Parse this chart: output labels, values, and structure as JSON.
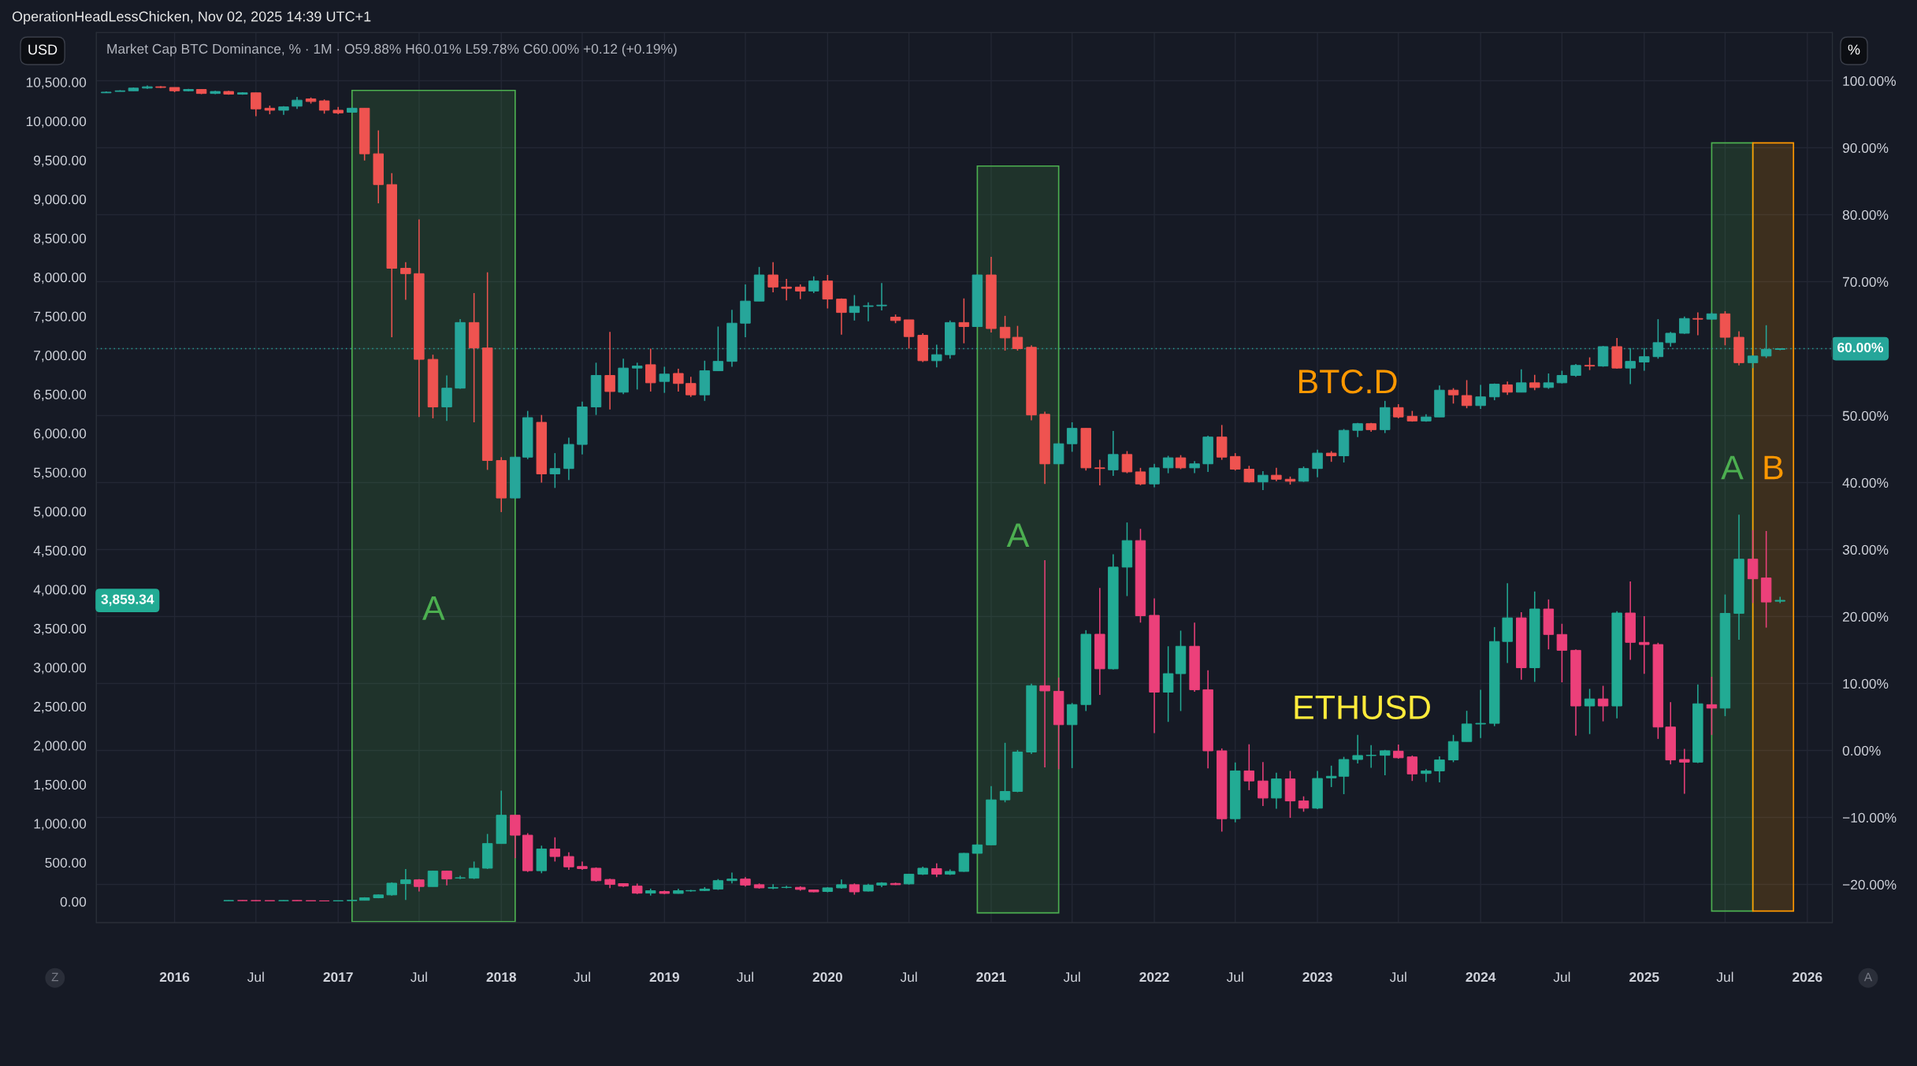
{
  "chart_data": {
    "type": "candlestick",
    "title": "OperationHeadLessChicken, Nov 02, 2025 14:39 UTC+1",
    "subtitle": "Market Cap BTC Dominance, % · 1M · O59.88% H60.01% L59.78% C60.00% +0.12 (+0.19%)",
    "ylabel": "USD",
    "y2label": "%",
    "annotations": [
      "Z",
      "A",
      "3,859.34"
    ],
    "series": [
      {
        "name": "BTC.D",
        "axis": "y2",
        "x": [
          "2015-08",
          "2015-09",
          "2015-10",
          "2015-11",
          "2015-12",
          "2016-01",
          "2016-02",
          "2016-03",
          "2016-04",
          "2016-05",
          "2016-06",
          "2016-07",
          "2016-08",
          "2016-09",
          "2016-10",
          "2016-11",
          "2016-12",
          "2017-01",
          "2017-02",
          "2017-03",
          "2017-04",
          "2017-05",
          "2017-06",
          "2017-07",
          "2017-08",
          "2017-09",
          "2017-10",
          "2017-11",
          "2017-12",
          "2018-01",
          "2018-02",
          "2018-03",
          "2018-04",
          "2018-05",
          "2018-06",
          "2018-07",
          "2018-08",
          "2018-09",
          "2018-10",
          "2018-11",
          "2018-12",
          "2019-01",
          "2019-02",
          "2019-03",
          "2019-04",
          "2019-05",
          "2019-06",
          "2019-07",
          "2019-08",
          "2019-09",
          "2019-10",
          "2019-11",
          "2019-12",
          "2020-01",
          "2020-02",
          "2020-03",
          "2020-04",
          "2020-05",
          "2020-06",
          "2020-07",
          "2020-08",
          "2020-09",
          "2020-10",
          "2020-11",
          "2020-12",
          "2021-01",
          "2021-02",
          "2021-03",
          "2021-04",
          "2021-05",
          "2021-06",
          "2021-07",
          "2021-08",
          "2021-09",
          "2021-10",
          "2021-11",
          "2021-12",
          "2022-01",
          "2022-02",
          "2022-03",
          "2022-04",
          "2022-05",
          "2022-06",
          "2022-07",
          "2022-08",
          "2022-09",
          "2022-10",
          "2022-11",
          "2022-12",
          "2023-01",
          "2023-02",
          "2023-03",
          "2023-04",
          "2023-05",
          "2023-06",
          "2023-07",
          "2023-08",
          "2023-09",
          "2023-10",
          "2023-11",
          "2023-12",
          "2024-01",
          "2024-02",
          "2024-03",
          "2024-04",
          "2024-05",
          "2024-06",
          "2024-07",
          "2024-08",
          "2024-09",
          "2024-10",
          "2024-11",
          "2024-12",
          "2025-01",
          "2025-02",
          "2025-03",
          "2025-04",
          "2025-05",
          "2025-06",
          "2025-07",
          "2025-08",
          "2025-09",
          "2025-10",
          "2025-11"
        ],
        "ohlc": [
          [
            98.2,
            98.4,
            98.2,
            98.3
          ],
          [
            98.4,
            98.6,
            98.4,
            98.5
          ],
          [
            98.5,
            99.0,
            98.5,
            98.9
          ],
          [
            98.9,
            99.3,
            98.8,
            99.1
          ],
          [
            99.1,
            99.2,
            98.9,
            99.0
          ],
          [
            99.0,
            99.0,
            98.3,
            98.5
          ],
          [
            98.5,
            98.8,
            98.4,
            98.7
          ],
          [
            98.7,
            98.7,
            98.0,
            98.1
          ],
          [
            98.1,
            98.5,
            98.0,
            98.4
          ],
          [
            98.4,
            98.5,
            97.9,
            98.0
          ],
          [
            98.0,
            98.3,
            97.9,
            98.2
          ],
          [
            98.2,
            98.2,
            94.7,
            95.8
          ],
          [
            95.9,
            96.3,
            95.0,
            95.6
          ],
          [
            95.6,
            96.2,
            94.9,
            96.1
          ],
          [
            96.2,
            97.6,
            95.8,
            97.1
          ],
          [
            97.3,
            97.5,
            96.6,
            96.9
          ],
          [
            97.0,
            97.2,
            95.1,
            95.6
          ],
          [
            95.6,
            96.1,
            95.0,
            95.2
          ],
          [
            95.3,
            96.0,
            95.2,
            95.9
          ],
          [
            95.9,
            95.9,
            88.1,
            89.1
          ],
          [
            89.1,
            92.6,
            81.7,
            84.5
          ],
          [
            84.5,
            86.2,
            61.7,
            72.0
          ],
          [
            72.0,
            72.9,
            67.3,
            71.2
          ],
          [
            71.2,
            79.3,
            49.8,
            58.4
          ],
          [
            58.4,
            59.1,
            49.6,
            51.3
          ],
          [
            51.3,
            56.0,
            49.2,
            54.1
          ],
          [
            54.1,
            64.4,
            54.0,
            63.9
          ],
          [
            63.9,
            68.3,
            49.0,
            60.1
          ],
          [
            60.1,
            71.4,
            41.9,
            43.3
          ],
          [
            43.3,
            43.8,
            35.6,
            37.7
          ],
          [
            37.7,
            43.9,
            37.6,
            43.8
          ],
          [
            43.8,
            50.7,
            43.5,
            49.7
          ],
          [
            49.0,
            50.1,
            40.0,
            41.3
          ],
          [
            41.3,
            44.4,
            39.2,
            42.1
          ],
          [
            42.1,
            46.7,
            40.4,
            45.7
          ],
          [
            45.7,
            52.1,
            44.2,
            51.3
          ],
          [
            51.3,
            57.9,
            50.1,
            56.0
          ],
          [
            56.0,
            62.5,
            50.9,
            53.6
          ],
          [
            53.5,
            58.5,
            53.2,
            57.1
          ],
          [
            57.1,
            57.9,
            53.9,
            57.4
          ],
          [
            57.6,
            60.0,
            53.6,
            54.9
          ],
          [
            55.1,
            57.3,
            53.4,
            56.2
          ],
          [
            56.3,
            57.0,
            53.6,
            54.8
          ],
          [
            54.8,
            55.8,
            52.8,
            53.1
          ],
          [
            53.1,
            58.2,
            52.2,
            56.7
          ],
          [
            56.7,
            63.3,
            56.7,
            58.1
          ],
          [
            58.1,
            65.8,
            57.3,
            63.8
          ],
          [
            63.8,
            69.6,
            61.7,
            67.1
          ],
          [
            67.1,
            72.2,
            67.1,
            71.0
          ],
          [
            71.0,
            72.9,
            68.4,
            69.2
          ],
          [
            69.2,
            70.4,
            67.2,
            69.0
          ],
          [
            69.2,
            69.6,
            67.4,
            68.6
          ],
          [
            68.6,
            70.8,
            68.3,
            70.1
          ],
          [
            70.1,
            71.0,
            66.0,
            67.4
          ],
          [
            67.4,
            67.5,
            62.1,
            65.4
          ],
          [
            65.4,
            68.0,
            64.2,
            66.3
          ],
          [
            66.3,
            66.9,
            64.1,
            66.4
          ],
          [
            66.4,
            69.8,
            65.7,
            66.5
          ],
          [
            64.7,
            65.1,
            63.8,
            64.2
          ],
          [
            64.3,
            64.3,
            60.0,
            61.8
          ],
          [
            62.0,
            62.3,
            58.0,
            58.2
          ],
          [
            58.2,
            60.6,
            57.2,
            59.1
          ],
          [
            59.1,
            64.2,
            58.5,
            63.9
          ],
          [
            63.9,
            67.5,
            60.8,
            63.3
          ],
          [
            63.3,
            71.1,
            63.3,
            71.0
          ],
          [
            71.0,
            73.7,
            62.4,
            63.0
          ],
          [
            63.2,
            64.9,
            59.7,
            61.6
          ],
          [
            61.7,
            63.4,
            59.7,
            60.0
          ],
          [
            60.2,
            60.5,
            49.3,
            50.1
          ],
          [
            50.2,
            50.6,
            39.8,
            42.8
          ],
          [
            42.8,
            45.9,
            42.8,
            45.8
          ],
          [
            45.8,
            49.0,
            44.6,
            48.1
          ],
          [
            48.1,
            48.1,
            41.8,
            42.2
          ],
          [
            42.2,
            43.4,
            39.6,
            42.1
          ],
          [
            41.9,
            47.7,
            41.0,
            44.2
          ],
          [
            44.2,
            44.7,
            41.4,
            41.6
          ],
          [
            41.6,
            42.2,
            39.6,
            39.8
          ],
          [
            39.8,
            42.8,
            39.3,
            42.2
          ],
          [
            42.2,
            44.0,
            41.4,
            43.7
          ],
          [
            43.7,
            44.1,
            42.0,
            42.2
          ],
          [
            42.2,
            43.2,
            41.4,
            42.8
          ],
          [
            42.8,
            47.0,
            41.6,
            46.8
          ],
          [
            46.8,
            48.6,
            43.4,
            43.8
          ],
          [
            43.9,
            44.4,
            41.8,
            42.0
          ],
          [
            42.0,
            42.5,
            40.0,
            40.1
          ],
          [
            40.1,
            41.7,
            38.9,
            41.1
          ],
          [
            41.1,
            42.2,
            40.2,
            40.5
          ],
          [
            40.5,
            40.9,
            39.7,
            40.2
          ],
          [
            40.2,
            42.4,
            40.1,
            42.1
          ],
          [
            42.1,
            44.9,
            40.8,
            44.4
          ],
          [
            44.4,
            44.7,
            43.1,
            44.0
          ],
          [
            44.0,
            48.0,
            43.0,
            47.8
          ],
          [
            47.8,
            48.9,
            46.8,
            48.8
          ],
          [
            48.8,
            48.9,
            47.6,
            47.9
          ],
          [
            47.9,
            52.2,
            47.4,
            51.2
          ],
          [
            51.2,
            51.7,
            49.6,
            49.8
          ],
          [
            49.9,
            50.7,
            49.1,
            49.2
          ],
          [
            49.2,
            50.2,
            49.1,
            49.8
          ],
          [
            49.8,
            54.5,
            49.8,
            53.8
          ],
          [
            53.8,
            54.1,
            51.8,
            53.1
          ],
          [
            53.0,
            55.3,
            51.1,
            51.5
          ],
          [
            51.5,
            54.6,
            51.0,
            52.8
          ],
          [
            52.8,
            54.8,
            52.3,
            54.7
          ],
          [
            54.6,
            55.1,
            53.1,
            53.5
          ],
          [
            53.5,
            56.9,
            53.5,
            54.9
          ],
          [
            54.9,
            56.1,
            53.8,
            54.2
          ],
          [
            54.2,
            56.3,
            54.0,
            54.9
          ],
          [
            54.9,
            56.7,
            54.8,
            56.0
          ],
          [
            56.0,
            57.7,
            55.8,
            57.5
          ],
          [
            57.5,
            58.7,
            56.8,
            57.4
          ],
          [
            57.4,
            60.4,
            57.3,
            60.3
          ],
          [
            60.3,
            61.6,
            57.0,
            57.1
          ],
          [
            57.1,
            60.1,
            54.7,
            58.1
          ],
          [
            58.0,
            60.1,
            56.7,
            58.8
          ],
          [
            58.8,
            64.4,
            58.5,
            60.9
          ],
          [
            60.9,
            62.5,
            60.3,
            62.3
          ],
          [
            62.3,
            64.8,
            62.2,
            64.5
          ],
          [
            64.5,
            65.4,
            62.0,
            64.4
          ],
          [
            64.4,
            65.4,
            64.3,
            65.2
          ],
          [
            65.2,
            65.6,
            60.5,
            61.7
          ],
          [
            61.7,
            62.6,
            57.5,
            57.9
          ],
          [
            57.9,
            59.0,
            57.1,
            58.9
          ],
          [
            58.9,
            63.5,
            58.6,
            59.9
          ],
          [
            59.88,
            60.01,
            59.78,
            60.0
          ]
        ],
        "colors": [
          "#26a69a",
          "#26a69a",
          "#26a69a",
          "#26a69a",
          "#ef5350",
          "#ef5350",
          "#26a69a",
          "#ef5350",
          "#26a69a",
          "#ef5350",
          "#26a69a",
          "#ef5350",
          "#ef5350",
          "#26a69a",
          "#26a69a",
          "#ef5350",
          "#ef5350",
          "#ef5350",
          "#26a69a",
          "#ef5350",
          "#ef5350",
          "#ef5350",
          "#ef5350",
          "#ef5350",
          "#ef5350",
          "#26a69a",
          "#26a69a",
          "#ef5350",
          "#ef5350",
          "#ef5350",
          "#26a69a",
          "#26a69a",
          "#ef5350",
          "#26a69a",
          "#26a69a",
          "#26a69a",
          "#26a69a",
          "#ef5350",
          "#26a69a",
          "#26a69a",
          "#ef5350",
          "#26a69a",
          "#ef5350",
          "#ef5350",
          "#26a69a",
          "#26a69a",
          "#26a69a",
          "#26a69a",
          "#26a69a",
          "#ef5350",
          "#ef5350",
          "#ef5350",
          "#26a69a",
          "#ef5350",
          "#ef5350",
          "#26a69a",
          "#26a69a",
          "#26a69a",
          "#ef5350",
          "#ef5350",
          "#ef5350",
          "#26a69a",
          "#26a69a",
          "#ef5350",
          "#26a69a",
          "#ef5350",
          "#ef5350",
          "#ef5350",
          "#ef5350",
          "#ef5350",
          "#26a69a",
          "#26a69a",
          "#ef5350",
          "#ef5350",
          "#26a69a",
          "#ef5350",
          "#ef5350",
          "#26a69a",
          "#26a69a",
          "#ef5350",
          "#26a69a",
          "#26a69a",
          "#ef5350",
          "#ef5350",
          "#ef5350",
          "#26a69a",
          "#ef5350",
          "#ef5350",
          "#26a69a",
          "#26a69a",
          "#ef5350",
          "#26a69a",
          "#26a69a",
          "#ef5350",
          "#26a69a",
          "#ef5350",
          "#ef5350",
          "#26a69a",
          "#26a69a",
          "#ef5350",
          "#ef5350",
          "#26a69a",
          "#26a69a",
          "#ef5350",
          "#26a69a",
          "#ef5350",
          "#26a69a",
          "#26a69a",
          "#26a69a",
          "#ef5350",
          "#26a69a",
          "#ef5350",
          "#26a69a",
          "#26a69a",
          "#26a69a",
          "#26a69a",
          "#26a69a",
          "#ef5350",
          "#26a69a",
          "#ef5350",
          "#ef5350",
          "#26a69a",
          "#26a69a",
          "#26a69a"
        ]
      },
      {
        "name": "ETHUSD",
        "x": [
          "2016-05",
          "2016-06",
          "2016-07",
          "2016-08",
          "2016-09",
          "2016-10",
          "2016-11",
          "2016-12",
          "2017-01",
          "2017-02",
          "2017-03",
          "2017-04",
          "2017-05",
          "2017-06",
          "2017-07",
          "2017-08",
          "2017-09",
          "2017-10",
          "2017-11",
          "2017-12",
          "2018-01",
          "2018-02",
          "2018-03",
          "2018-04",
          "2018-05",
          "2018-06",
          "2018-07",
          "2018-08",
          "2018-09",
          "2018-10",
          "2018-11",
          "2018-12",
          "2019-01",
          "2019-02",
          "2019-03",
          "2019-04",
          "2019-05",
          "2019-06",
          "2019-07",
          "2019-08",
          "2019-09",
          "2019-10",
          "2019-11",
          "2019-12",
          "2020-01",
          "2020-02",
          "2020-03",
          "2020-04",
          "2020-05",
          "2020-06",
          "2020-07",
          "2020-08",
          "2020-09",
          "2020-10",
          "2020-11",
          "2020-12",
          "2021-01",
          "2021-02",
          "2021-03",
          "2021-04",
          "2021-05",
          "2021-06",
          "2021-07",
          "2021-08",
          "2021-09",
          "2021-10",
          "2021-11",
          "2021-12",
          "2022-01",
          "2022-02",
          "2022-03",
          "2022-04",
          "2022-05",
          "2022-06",
          "2022-07",
          "2022-08",
          "2022-09",
          "2022-10",
          "2022-11",
          "2022-12",
          "2023-01",
          "2023-02",
          "2023-03",
          "2023-04",
          "2023-05",
          "2023-06",
          "2023-07",
          "2023-08",
          "2023-09",
          "2023-10",
          "2023-11",
          "2023-12",
          "2024-01",
          "2024-02",
          "2024-03",
          "2024-04",
          "2024-05",
          "2024-06",
          "2024-07",
          "2024-08",
          "2024-09",
          "2024-10",
          "2024-11",
          "2024-12",
          "2025-01",
          "2025-02",
          "2025-03",
          "2025-04",
          "2025-05",
          "2025-06",
          "2025-07",
          "2025-08",
          "2025-09",
          "2025-10",
          "2025-11"
        ],
        "ohlc": [
          [
            10,
            14,
            9,
            13
          ],
          [
            13,
            14,
            11,
            12
          ],
          [
            12,
            15,
            10,
            11
          ],
          [
            11,
            12,
            9,
            10
          ],
          [
            10,
            14,
            10,
            13
          ],
          [
            13,
            14,
            11,
            11
          ],
          [
            11,
            11,
            8,
            9
          ],
          [
            9,
            9,
            7,
            8
          ],
          [
            8,
            11,
            8,
            11
          ],
          [
            11,
            17,
            11,
            16
          ],
          [
            16,
            55,
            15,
            48
          ],
          [
            48,
            90,
            42,
            85
          ],
          [
            85,
            246,
            75,
            235
          ],
          [
            230,
            417,
            20,
            278
          ],
          [
            278,
            289,
            128,
            192
          ],
          [
            192,
            395,
            192,
            390
          ],
          [
            390,
            395,
            208,
            289
          ],
          [
            300,
            331,
            289,
            305
          ],
          [
            299,
            513,
            289,
            427
          ],
          [
            427,
            866,
            417,
            743
          ],
          [
            743,
            1421,
            743,
            1106
          ],
          [
            1106,
            1106,
            556,
            850
          ],
          [
            850,
            876,
            379,
            395
          ],
          [
            395,
            716,
            363,
            673
          ],
          [
            673,
            823,
            513,
            577
          ],
          [
            577,
            631,
            406,
            444
          ],
          [
            449,
            513,
            406,
            422
          ],
          [
            427,
            438,
            256,
            267
          ],
          [
            283,
            294,
            171,
            219
          ],
          [
            230,
            235,
            187,
            198
          ],
          [
            198,
            230,
            96,
            107
          ],
          [
            108,
            165,
            77,
            139
          ],
          [
            128,
            140,
            95,
            104
          ],
          [
            104,
            165,
            100,
            139
          ],
          [
            136,
            150,
            126,
            141
          ],
          [
            141,
            185,
            134,
            160
          ],
          [
            160,
            288,
            149,
            268
          ],
          [
            268,
            371,
            232,
            288
          ],
          [
            288,
            314,
            191,
            211
          ],
          [
            216,
            232,
            165,
            175
          ],
          [
            172,
            221,
            160,
            180
          ],
          [
            180,
            201,
            170,
            182
          ],
          [
            182,
            196,
            139,
            155
          ],
          [
            149,
            155,
            118,
            124
          ],
          [
            129,
            185,
            118,
            175
          ],
          [
            175,
            283,
            165,
            216
          ],
          [
            216,
            232,
            88,
            124
          ],
          [
            134,
            227,
            129,
            211
          ],
          [
            211,
            247,
            185,
            237
          ],
          [
            232,
            242,
            211,
            216
          ],
          [
            226,
            355,
            216,
            350
          ],
          [
            350,
            448,
            340,
            427
          ],
          [
            422,
            489,
            314,
            350
          ],
          [
            350,
            412,
            340,
            386
          ],
          [
            386,
            623,
            381,
            618
          ],
          [
            618,
            737,
            618,
            726
          ],
          [
            726,
            1478,
            721,
            1303
          ],
          [
            1303,
            2034,
            1272,
            1411
          ],
          [
            1411,
            1942,
            1401,
            1916
          ],
          [
            1916,
            2792,
            1890,
            2766
          ],
          [
            2766,
            4373,
            1720,
            2699
          ],
          [
            2694,
            2869,
            1695,
            2266
          ],
          [
            2266,
            2544,
            1710,
            2524
          ],
          [
            2524,
            3477,
            2441,
            3425
          ],
          [
            3425,
            4017,
            2647,
            2982
          ],
          [
            2982,
            4450,
            2972,
            4285
          ],
          [
            4285,
            4857,
            3914,
            4625
          ],
          [
            4625,
            4775,
            3574,
            3662
          ],
          [
            3667,
            3884,
            2158,
            2683
          ],
          [
            2683,
            3271,
            2302,
            2920
          ],
          [
            2920,
            3471,
            2441,
            3271
          ],
          [
            3271,
            3574,
            2689,
            2714
          ],
          [
            2714,
            2962,
            1705,
            1931
          ],
          [
            1931,
            1962,
            896,
            1061
          ],
          [
            1061,
            1782,
            1015,
            1674
          ],
          [
            1674,
            2015,
            1427,
            1545
          ],
          [
            1545,
            1786,
            1224,
            1326
          ],
          [
            1326,
            1651,
            1190,
            1571
          ],
          [
            1571,
            1674,
            1072,
            1289
          ],
          [
            1289,
            1348,
            1151,
            1196
          ],
          [
            1196,
            1674,
            1185,
            1577
          ],
          [
            1585,
            1741,
            1467,
            1605
          ],
          [
            1605,
            1854,
            1376,
            1820
          ],
          [
            1820,
            2135,
            1770,
            1871
          ],
          [
            1871,
            2005,
            1713,
            1874
          ],
          [
            1874,
            1943,
            1618,
            1932
          ],
          [
            1927,
            2011,
            1831,
            1842
          ],
          [
            1853,
            1871,
            1545,
            1635
          ],
          [
            1641,
            1697,
            1533,
            1674
          ],
          [
            1674,
            1859,
            1528,
            1815
          ],
          [
            1815,
            2135,
            1786,
            2050
          ],
          [
            2050,
            2444,
            2050,
            2275
          ],
          [
            2275,
            2713,
            2095,
            2283
          ],
          [
            2283,
            3517,
            2247,
            3332
          ],
          [
            3332,
            4079,
            3056,
            3635
          ],
          [
            3635,
            3708,
            2843,
            2996
          ],
          [
            2996,
            3973,
            2815,
            3748
          ],
          [
            3748,
            3871,
            3231,
            3422
          ],
          [
            3422,
            3559,
            2809,
            3219
          ],
          [
            3219,
            3231,
            2124,
            2506
          ],
          [
            2506,
            2725,
            2146,
            2596
          ],
          [
            2596,
            2764,
            2309,
            2506
          ],
          [
            2506,
            3720,
            2348,
            3697
          ],
          [
            3697,
            4102,
            3096,
            3321
          ],
          [
            3321,
            3658,
            2917,
            3293
          ],
          [
            3293,
            3316,
            2084,
            2236
          ],
          [
            2236,
            2555,
            1758,
            1814
          ],
          [
            1820,
            1955,
            1381,
            1786
          ],
          [
            1786,
            2781,
            1775,
            2534
          ],
          [
            2523,
            2880,
            2135,
            2478
          ],
          [
            2478,
            3934,
            2376,
            3692
          ],
          [
            3692,
            4956,
            3354,
            4387
          ],
          [
            4387,
            4759,
            3825,
            4135
          ],
          [
            4146,
            4748,
            3510,
            3838
          ],
          [
            3848,
            3905,
            3825,
            3859.34
          ]
        ],
        "colors": [
          "#22ab94",
          "#ec407a",
          "#ec407a",
          "#ec407a",
          "#22ab94",
          "#ec407a",
          "#ec407a",
          "#ec407a",
          "#22ab94",
          "#22ab94",
          "#22ab94",
          "#22ab94",
          "#22ab94",
          "#22ab94",
          "#ec407a",
          "#22ab94",
          "#ec407a",
          "#22ab94",
          "#22ab94",
          "#22ab94",
          "#22ab94",
          "#ec407a",
          "#ec407a",
          "#22ab94",
          "#ec407a",
          "#ec407a",
          "#ec407a",
          "#ec407a",
          "#ec407a",
          "#ec407a",
          "#ec407a",
          "#22ab94",
          "#ec407a",
          "#22ab94",
          "#22ab94",
          "#22ab94",
          "#22ab94",
          "#22ab94",
          "#ec407a",
          "#ec407a",
          "#22ab94",
          "#22ab94",
          "#ec407a",
          "#ec407a",
          "#22ab94",
          "#22ab94",
          "#ec407a",
          "#22ab94",
          "#22ab94",
          "#ec407a",
          "#22ab94",
          "#22ab94",
          "#ec407a",
          "#22ab94",
          "#22ab94",
          "#22ab94",
          "#22ab94",
          "#22ab94",
          "#22ab94",
          "#22ab94",
          "#ec407a",
          "#ec407a",
          "#22ab94",
          "#22ab94",
          "#ec407a",
          "#22ab94",
          "#22ab94",
          "#ec407a",
          "#ec407a",
          "#22ab94",
          "#22ab94",
          "#ec407a",
          "#ec407a",
          "#ec407a",
          "#22ab94",
          "#ec407a",
          "#ec407a",
          "#22ab94",
          "#ec407a",
          "#ec407a",
          "#22ab94",
          "#22ab94",
          "#22ab94",
          "#22ab94",
          "#22ab94",
          "#22ab94",
          "#ec407a",
          "#ec407a",
          "#22ab94",
          "#22ab94",
          "#22ab94",
          "#22ab94",
          "#22ab94",
          "#22ab94",
          "#22ab94",
          "#ec407a",
          "#22ab94",
          "#ec407a",
          "#ec407a",
          "#ec407a",
          "#22ab94",
          "#ec407a",
          "#22ab94",
          "#ec407a",
          "#ec407a",
          "#ec407a",
          "#ec407a",
          "#ec407a",
          "#22ab94",
          "#ec407a",
          "#22ab94",
          "#22ab94",
          "#ec407a",
          "#ec407a",
          "#22ab94"
        ]
      }
    ],
    "xlim": [
      "2015-07-10",
      "2026-02-26"
    ],
    "xticks": [
      {
        "value": "2016-01",
        "label": "2016"
      },
      {
        "value": "2016-07",
        "label": "Jul"
      },
      {
        "value": "2017-01",
        "label": "2017"
      },
      {
        "value": "2017-07",
        "label": "Jul"
      },
      {
        "value": "2018-01",
        "label": "2018"
      },
      {
        "value": "2018-07",
        "label": "Jul"
      },
      {
        "value": "2019-01",
        "label": "2019"
      },
      {
        "value": "2019-07",
        "label": "Jul"
      },
      {
        "value": "2020-01",
        "label": "2020"
      },
      {
        "value": "2020-07",
        "label": "Jul"
      },
      {
        "value": "2021-01",
        "label": "2021"
      },
      {
        "value": "2021-07",
        "label": "Jul"
      },
      {
        "value": "2022-01",
        "label": "2022"
      },
      {
        "value": "2022-07",
        "label": "Jul"
      },
      {
        "value": "2023-01",
        "label": "2023"
      },
      {
        "value": "2023-07",
        "label": "Jul"
      },
      {
        "value": "2024-01",
        "label": "2024"
      },
      {
        "value": "2024-07",
        "label": "Jul"
      },
      {
        "value": "2025-01",
        "label": "2025"
      },
      {
        "value": "2025-07",
        "label": "Jul"
      },
      {
        "value": "2026-01",
        "label": "2026"
      }
    ],
    "ylim": [
      -270,
      11135
    ],
    "yticks": [
      {
        "value": 0,
        "label": "0.00"
      },
      {
        "value": 500,
        "label": "500.00"
      },
      {
        "value": 1000,
        "label": "1,000.00"
      },
      {
        "value": 1500,
        "label": "1,500.00"
      },
      {
        "value": 2000,
        "label": "2,000.00"
      },
      {
        "value": 2500,
        "label": "2,500.00"
      },
      {
        "value": 3000,
        "label": "3,000.00"
      },
      {
        "value": 3500,
        "label": "3,500.00"
      },
      {
        "value": 4000,
        "label": "4,000.00"
      },
      {
        "value": 4500,
        "label": "4,500.00"
      },
      {
        "value": 5000,
        "label": "5,000.00"
      },
      {
        "value": 5500,
        "label": "5,500.00"
      },
      {
        "value": 6000,
        "label": "6,000.00"
      },
      {
        "value": 6500,
        "label": "6,500.00"
      },
      {
        "value": 7000,
        "label": "7,000.00"
      },
      {
        "value": 7500,
        "label": "7,500.00"
      },
      {
        "value": 8000,
        "label": "8,000.00"
      },
      {
        "value": 8500,
        "label": "8,500.00"
      },
      {
        "value": 9000,
        "label": "9,000.00"
      },
      {
        "value": 9500,
        "label": "9,500.00"
      },
      {
        "value": 10000,
        "label": "10,000.00"
      },
      {
        "value": 10500,
        "label": "10,500.00"
      }
    ],
    "y2lim": [
      -25.7,
      107.2
    ],
    "y2ticks": [
      {
        "value": -20,
        "label": "−20.00%"
      },
      {
        "value": -10,
        "label": "−10.00%"
      },
      {
        "value": 0,
        "label": "0.00%"
      },
      {
        "value": 10,
        "label": "10.00%"
      },
      {
        "value": 20,
        "label": "20.00%"
      },
      {
        "value": 30,
        "label": "30.00%"
      },
      {
        "value": 40,
        "label": "40.00%"
      },
      {
        "value": 50,
        "label": "50.00%"
      },
      {
        "value": 60,
        "label": null
      },
      {
        "value": 70,
        "label": "70.00%"
      },
      {
        "value": 80,
        "label": "80.00%"
      },
      {
        "value": 90,
        "label": "90.00%"
      },
      {
        "value": 100,
        "label": "100.00%"
      }
    ],
    "ref_lines": [
      {
        "axis": "y2",
        "value": 60,
        "label": "60.00%",
        "color": "#26a69a",
        "line_style": "dotted"
      }
    ],
    "bands": [
      {
        "axis": "x",
        "from": "2017-02",
        "to": "2018-02",
        "label": "A",
        "color": "#4caf50"
      },
      {
        "axis": "x",
        "from": "2020-12",
        "to": "2021-06",
        "label": "A",
        "color": "#4caf50"
      },
      {
        "axis": "x",
        "from": "2025-06",
        "to": "2025-09",
        "label": "A",
        "color": "#4caf50"
      },
      {
        "axis": "x",
        "from": "2025-09",
        "to": "2025-12",
        "label": "B",
        "color": "#ff9800"
      }
    ],
    "grid": true
  }
}
